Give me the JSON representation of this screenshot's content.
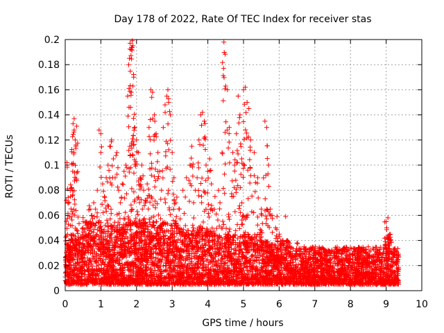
{
  "chart_data": {
    "type": "scatter",
    "title": "Day 178 of 2022, Rate Of TEC Index for receiver stas",
    "xlabel": "GPS time / hours",
    "ylabel": "ROTI / TECUs",
    "xlim": [
      0,
      10
    ],
    "ylim": [
      0,
      0.2
    ],
    "xticks": [
      0,
      1,
      2,
      3,
      4,
      5,
      6,
      7,
      8,
      9,
      10
    ],
    "xtick_labels": [
      "0",
      "1",
      "2",
      "3",
      "4",
      "5",
      "6",
      "7",
      "8",
      "9",
      "10"
    ],
    "yticks": [
      0,
      0.02,
      0.04,
      0.06,
      0.08,
      0.1,
      0.12,
      0.14,
      0.16,
      0.18,
      0.2
    ],
    "ytick_labels": [
      "0",
      "0.02",
      "0.04",
      "0.06",
      "0.08",
      "0.1",
      "0.12",
      "0.14",
      "0.16",
      "0.18",
      "0.2"
    ],
    "grid": true,
    "marker": "+",
    "color": "#ff0000",
    "series": [
      {
        "name": "ROTI",
        "points": [
          [
            0.05,
            0.102
          ],
          [
            0.1,
            0.04
          ],
          [
            0.15,
            0.075
          ],
          [
            0.18,
            0.101
          ],
          [
            0.2,
            0.08
          ],
          [
            0.22,
            0.133
          ],
          [
            0.25,
            0.137
          ],
          [
            0.25,
            0.128
          ],
          [
            0.28,
            0.12
          ],
          [
            0.3,
            0.115
          ],
          [
            0.32,
            0.131
          ],
          [
            0.5,
            0.05
          ],
          [
            0.6,
            0.055
          ],
          [
            0.7,
            0.065
          ],
          [
            0.75,
            0.06
          ],
          [
            0.8,
            0.07
          ],
          [
            0.85,
            0.065
          ],
          [
            0.9,
            0.08
          ],
          [
            0.95,
            0.128
          ],
          [
            1.0,
            0.125
          ],
          [
            1.0,
            0.11
          ],
          [
            1.05,
            0.085
          ],
          [
            1.1,
            0.075
          ],
          [
            1.15,
            0.09
          ],
          [
            1.2,
            0.1
          ],
          [
            1.25,
            0.115
          ],
          [
            1.3,
            0.12
          ],
          [
            1.35,
            0.105
          ],
          [
            1.4,
            0.09
          ],
          [
            1.45,
            0.11
          ],
          [
            1.5,
            0.08
          ],
          [
            1.55,
            0.07
          ],
          [
            1.6,
            0.085
          ],
          [
            1.65,
            0.095
          ],
          [
            1.7,
            0.1
          ],
          [
            1.75,
            0.155
          ],
          [
            1.78,
            0.18
          ],
          [
            1.8,
            0.185
          ],
          [
            1.82,
            0.197
          ],
          [
            1.85,
            0.192
          ],
          [
            1.88,
            0.199
          ],
          [
            1.9,
            0.195
          ],
          [
            1.9,
            0.163
          ],
          [
            1.92,
            0.17
          ],
          [
            1.95,
            0.13
          ],
          [
            2.0,
            0.12
          ],
          [
            2.05,
            0.11
          ],
          [
            2.1,
            0.09
          ],
          [
            2.15,
            0.1
          ],
          [
            2.2,
            0.08
          ],
          [
            2.25,
            0.07
          ],
          [
            2.3,
            0.085
          ],
          [
            2.35,
            0.13
          ],
          [
            2.4,
            0.16
          ],
          [
            2.45,
            0.158
          ],
          [
            2.5,
            0.14
          ],
          [
            2.55,
            0.125
          ],
          [
            2.6,
            0.11
          ],
          [
            2.65,
            0.095
          ],
          [
            2.7,
            0.08
          ],
          [
            2.75,
            0.13
          ],
          [
            2.8,
            0.148
          ],
          [
            2.85,
            0.155
          ],
          [
            2.88,
            0.16
          ],
          [
            2.9,
            0.15
          ],
          [
            2.95,
            0.14
          ],
          [
            3.0,
            0.11
          ],
          [
            3.05,
            0.09
          ],
          [
            3.1,
            0.07
          ],
          [
            3.2,
            0.065
          ],
          [
            3.3,
            0.08
          ],
          [
            3.4,
            0.09
          ],
          [
            3.5,
            0.1
          ],
          [
            3.55,
            0.115
          ],
          [
            3.6,
            0.07
          ],
          [
            3.65,
            0.08
          ],
          [
            3.7,
            0.09
          ],
          [
            3.75,
            0.12
          ],
          [
            3.8,
            0.14
          ],
          [
            3.85,
            0.142
          ],
          [
            3.9,
            0.135
          ],
          [
            3.95,
            0.1
          ],
          [
            4.0,
            0.095
          ],
          [
            4.05,
            0.105
          ],
          [
            4.1,
            0.085
          ],
          [
            4.2,
            0.075
          ],
          [
            4.3,
            0.08
          ],
          [
            4.4,
            0.11
          ],
          [
            4.45,
            0.198
          ],
          [
            4.5,
            0.163
          ],
          [
            4.55,
            0.16
          ],
          [
            4.6,
            0.13
          ],
          [
            4.7,
            0.11
          ],
          [
            4.75,
            0.1
          ],
          [
            4.8,
            0.125
          ],
          [
            4.85,
            0.155
          ],
          [
            4.9,
            0.14
          ],
          [
            4.95,
            0.105
          ],
          [
            5.0,
            0.16
          ],
          [
            5.05,
            0.162
          ],
          [
            5.1,
            0.15
          ],
          [
            5.15,
            0.145
          ],
          [
            5.2,
            0.12
          ],
          [
            5.3,
            0.11
          ],
          [
            5.4,
            0.09
          ],
          [
            5.5,
            0.065
          ],
          [
            5.6,
            0.135
          ],
          [
            5.65,
            0.13
          ],
          [
            5.7,
            0.1
          ],
          [
            5.75,
            0.065
          ],
          [
            5.8,
            0.06
          ],
          [
            5.9,
            0.05
          ],
          [
            6.0,
            0.045
          ],
          [
            6.1,
            0.04
          ],
          [
            6.3,
            0.035
          ],
          [
            6.5,
            0.038
          ],
          [
            6.7,
            0.035
          ],
          [
            7.0,
            0.03
          ],
          [
            7.3,
            0.032
          ],
          [
            7.6,
            0.03
          ],
          [
            7.9,
            0.033
          ],
          [
            8.2,
            0.03
          ],
          [
            8.5,
            0.035
          ],
          [
            8.8,
            0.03
          ],
          [
            9.0,
            0.055
          ],
          [
            9.05,
            0.058
          ],
          [
            9.1,
            0.045
          ],
          [
            9.2,
            0.03
          ],
          [
            9.3,
            0.025
          ]
        ]
      }
    ]
  }
}
